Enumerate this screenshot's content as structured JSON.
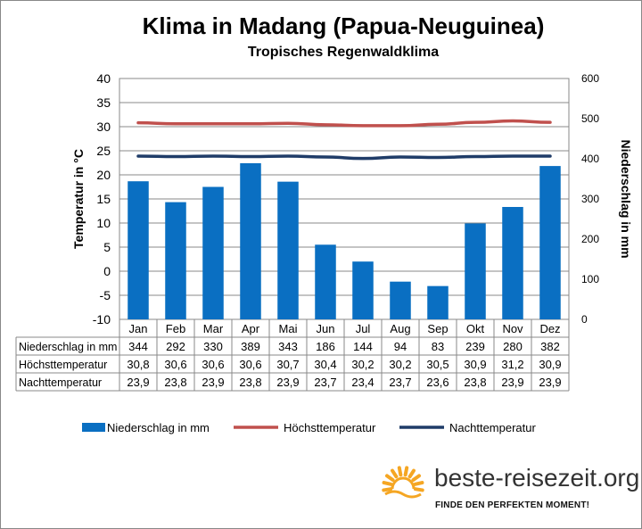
{
  "chart_data": {
    "type": "bar",
    "title": "Klima in Madang (Papua-Neuguinea)",
    "subtitle": "Tropisches Regenwaldklima",
    "categories": [
      "Jan",
      "Feb",
      "Mar",
      "Apr",
      "Mai",
      "Jun",
      "Jul",
      "Aug",
      "Sep",
      "Okt",
      "Nov",
      "Dez"
    ],
    "ylabel_left": "Temperatur in °C",
    "ylabel_right": "Niederschlag in mm",
    "ylim_left": [
      -10,
      40
    ],
    "ylim_right": [
      0,
      600
    ],
    "yticks_left": [
      "40",
      "35",
      "30",
      "25",
      "20",
      "15",
      "10",
      "5",
      "0",
      "-5",
      "-10"
    ],
    "yticks_right": [
      "600",
      "500",
      "400",
      "300",
      "200",
      "100",
      "0"
    ],
    "grid": true,
    "series": [
      {
        "name": "Niederschlag in mm",
        "type": "bar",
        "axis": "right",
        "color": "#0a6fc2",
        "values": [
          344,
          292,
          330,
          389,
          343,
          186,
          144,
          94,
          83,
          239,
          280,
          382
        ]
      },
      {
        "name": "Höchsttemperatur",
        "type": "line",
        "axis": "left",
        "color": "#c0504d",
        "values": [
          30.8,
          30.6,
          30.6,
          30.6,
          30.7,
          30.4,
          30.2,
          30.2,
          30.5,
          30.9,
          31.2,
          30.9
        ]
      },
      {
        "name": "Nachttemperatur",
        "type": "line",
        "axis": "left",
        "color": "#1f3c68",
        "values": [
          23.9,
          23.8,
          23.9,
          23.8,
          23.9,
          23.7,
          23.4,
          23.7,
          23.6,
          23.8,
          23.9,
          23.9
        ]
      }
    ],
    "table": {
      "rows": [
        {
          "label": "Niederschlag in mm",
          "values": [
            "344",
            "292",
            "330",
            "389",
            "343",
            "186",
            "144",
            "94",
            "83",
            "239",
            "280",
            "382"
          ]
        },
        {
          "label": "Höchsttemperatur",
          "values": [
            "30,8",
            "30,6",
            "30,6",
            "30,6",
            "30,7",
            "30,4",
            "30,2",
            "30,2",
            "30,5",
            "30,9",
            "31,2",
            "30,9"
          ]
        },
        {
          "label": "Nachttemperatur",
          "values": [
            "23,9",
            "23,8",
            "23,9",
            "23,8",
            "23,9",
            "23,7",
            "23,4",
            "23,7",
            "23,6",
            "23,8",
            "23,9",
            "23,9"
          ]
        }
      ]
    },
    "legend_position": "bottom"
  },
  "brand": {
    "name": "beste-reisezeit.org",
    "tagline": "FINDE DEN PERFEKTEN MOMENT!",
    "accent": "#f5a623"
  }
}
